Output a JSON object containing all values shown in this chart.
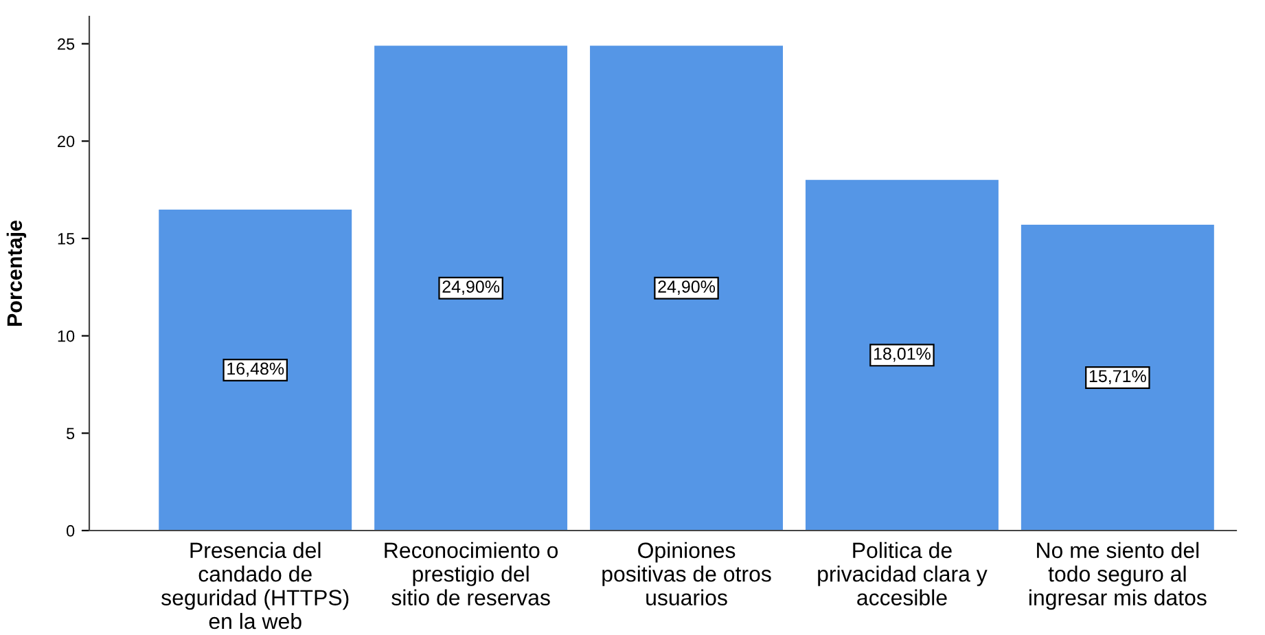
{
  "chart_data": {
    "type": "bar",
    "ylabel": "Porcentaje",
    "categories": [
      "Presencia del candado de seguridad (HTTPS) en la web",
      "Reconocimiento o prestigio del sitio de reservas",
      "Opiniones positivas de otros usuarios",
      "Politica de privacidad clara y accesible",
      "No me siento del todo seguro al ingresar mis datos"
    ],
    "values": [
      16.48,
      24.9,
      24.9,
      18.01,
      15.71
    ],
    "value_labels": [
      "16,48%",
      "24,90%",
      "24,90%",
      "18,01%",
      "15,71%"
    ],
    "color": "#5596e6",
    "ylim": [
      0,
      26.4
    ],
    "yticks": [
      0,
      5,
      10,
      15,
      20,
      25
    ],
    "grid": false
  }
}
